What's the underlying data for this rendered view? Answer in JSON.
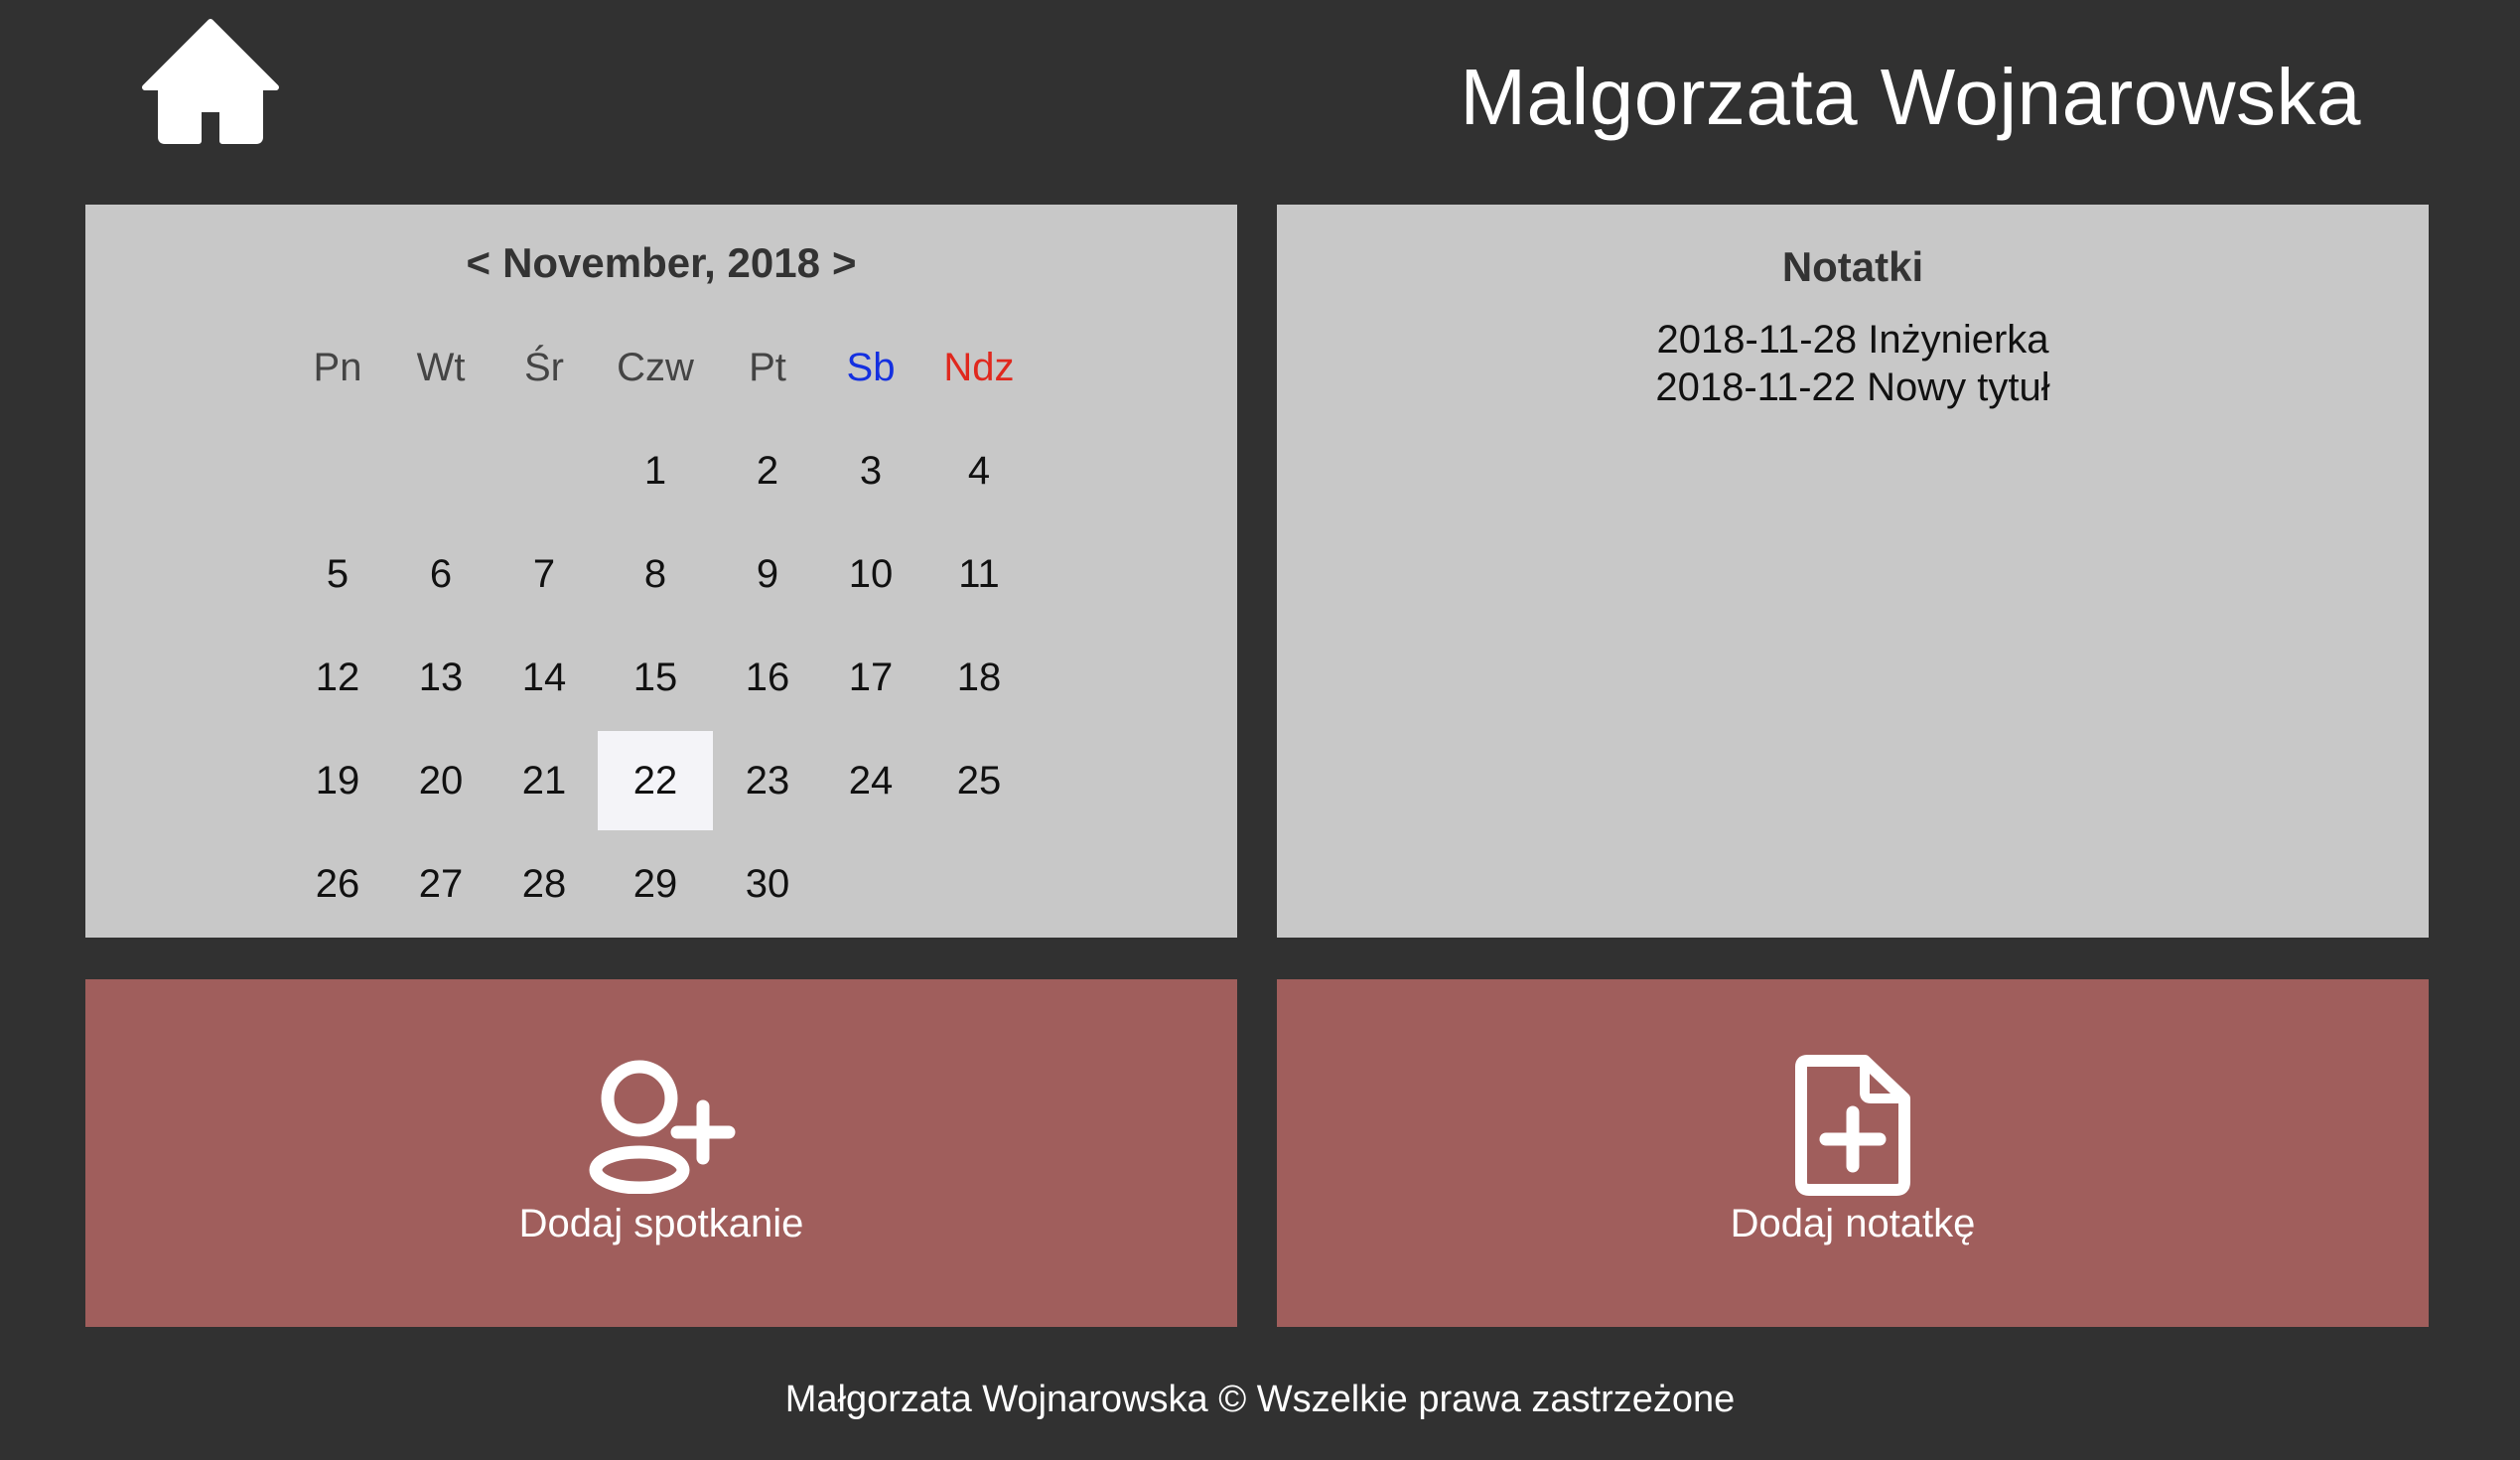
{
  "header": {
    "home_icon": "home-icon",
    "user_name": "Malgorzata Wojnarowska"
  },
  "calendar": {
    "prev_label": "<",
    "next_label": ">",
    "month_label": "November, 2018",
    "weekdays": [
      "Pn",
      "Wt",
      "Śr",
      "Czw",
      "Pt",
      "Sb",
      "Ndz"
    ],
    "weekday_colors": {
      "saturday": "#1430e0",
      "sunday": "#e0281e"
    },
    "first_weekday_index": 3,
    "days_in_month": 30,
    "today": 22
  },
  "notes": {
    "title": "Notatki",
    "items": [
      "2018-11-28 Inżynierka",
      "2018-11-22 Nowy tytuł"
    ]
  },
  "actions": {
    "add_meeting": {
      "icon": "add-user-icon",
      "label": "Dodaj spotkanie"
    },
    "add_note": {
      "icon": "add-file-icon",
      "label": "Dodaj notatkę"
    }
  },
  "footer": {
    "text": "Małgorzata Wojnarowska © Wszelkie prawa zastrzeżone"
  },
  "colors": {
    "background": "#313131",
    "panel": "#c8c8c8",
    "action": "#a05e5c",
    "today_highlight": "#f4f4f8"
  }
}
